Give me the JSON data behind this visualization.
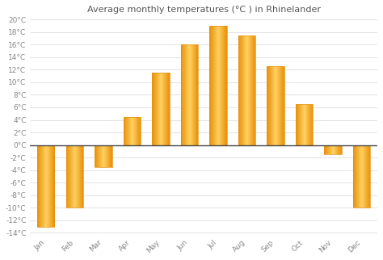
{
  "title": "Average monthly temperatures (°C ) in Rhinelander",
  "months": [
    "Jan",
    "Feb",
    "Mar",
    "Apr",
    "May",
    "Jun",
    "Jul",
    "Aug",
    "Sep",
    "Oct",
    "Nov",
    "Dec"
  ],
  "values": [
    -13,
    -10,
    -3.5,
    4.5,
    11.5,
    16,
    19,
    17.5,
    12.5,
    6.5,
    -1.5,
    -10
  ],
  "background_color": "#ffffff",
  "ylim_min": -14,
  "ylim_max": 20,
  "yticks": [
    -14,
    -12,
    -10,
    -8,
    -6,
    -4,
    -2,
    0,
    2,
    4,
    6,
    8,
    10,
    12,
    14,
    16,
    18,
    20
  ],
  "ytick_labels": [
    "-14°C",
    "-12°C",
    "-10°C",
    "-8°C",
    "-6°C",
    "-4°C",
    "-2°C",
    "0°C",
    "2°C",
    "4°C",
    "6°C",
    "8°C",
    "10°C",
    "12°C",
    "14°C",
    "16°C",
    "18°C",
    "20°C"
  ],
  "title_fontsize": 8,
  "tick_fontsize": 6.5,
  "grid_color": "#dddddd",
  "zero_line_color": "#444444",
  "bar_color_dark": "#E8900A",
  "bar_color_light": "#FFD060",
  "bar_width": 0.6
}
